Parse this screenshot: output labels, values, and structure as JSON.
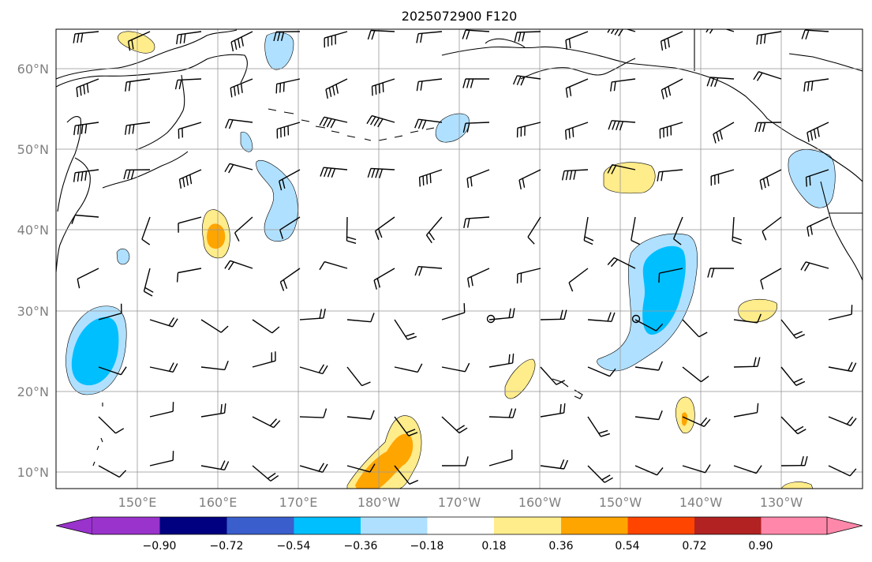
{
  "title": "2025072900 F120",
  "map": {
    "lon_range": [
      140,
      242
    ],
    "lat_range": [
      8,
      65
    ],
    "latitude_labels": [
      "10°N",
      "20°N",
      "30°N",
      "40°N",
      "50°N",
      "60°N"
    ],
    "longitude_labels": [
      "150°E",
      "160°E",
      "170°E",
      "180°W",
      "170°W",
      "160°W",
      "150°W",
      "140°W",
      "130°W"
    ],
    "label_color": "#808080",
    "grid": true
  },
  "colorbar": {
    "extend": "both",
    "tick_labels": [
      "−0.90",
      "−0.72",
      "−0.54",
      "−0.36",
      "−0.18",
      "0.18",
      "0.36",
      "0.54",
      "0.72",
      "0.90"
    ],
    "colors": [
      "#9933cc",
      "#000080",
      "#3a5fcd",
      "#00bfff",
      "#b0e0ff",
      "#ffffff",
      "#ffec8b",
      "#ffa500",
      "#ff4500",
      "#b22222",
      "#ff88aa"
    ]
  }
}
